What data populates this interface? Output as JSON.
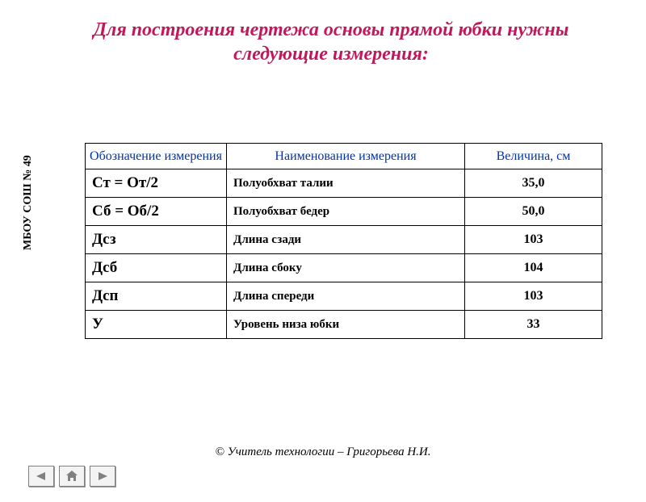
{
  "title_color": "#c2185b",
  "title": "Для построения чертежа основы прямой юбки нужны следующие измерения:",
  "side_label": "МБОУ СОШ № 49",
  "table": {
    "header_color": "#0033aa",
    "columns": [
      "Обозначение измерения",
      "Наименование измерения",
      "Величина, см"
    ],
    "rows": [
      {
        "sym": "Ст = От/2",
        "name": "Полуобхват талии",
        "val": "35,0"
      },
      {
        "sym": "Сб = Об/2",
        "name": "Полуобхват бедер",
        "val": "50,0"
      },
      {
        "sym": "Дсз",
        "name": "Длина сзади",
        "val": "103"
      },
      {
        "sym": "Дсб",
        "name": "Длина сбоку",
        "val": "104"
      },
      {
        "sym": "Дсп",
        "name": "Длина спереди",
        "val": "103"
      },
      {
        "sym": "У",
        "name": "Уровень низа юбки",
        "val": "33"
      }
    ]
  },
  "footer": "©  Учитель технологии – Григорьева Н.И.",
  "nav_icon_color": "#808080"
}
